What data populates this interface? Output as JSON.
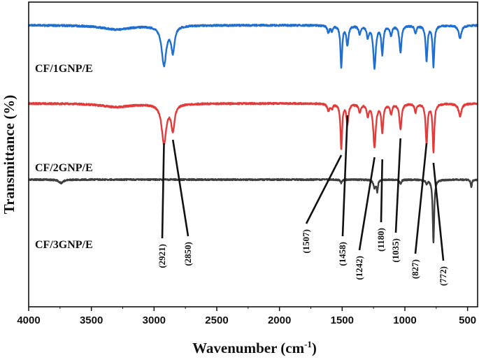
{
  "chart_data": {
    "type": "line",
    "xlabel": "Wavenumber (cm",
    "xlabel_sup": "-1",
    "xlabel_end": ")",
    "ylabel": "Transmittance (%)",
    "xlim": [
      4000,
      420
    ],
    "x_reversed": true,
    "x_ticks": [
      4000,
      3500,
      3000,
      2500,
      2000,
      1500,
      1000,
      500
    ],
    "y_ticks_shown": false,
    "grid": false,
    "series": [
      {
        "name": "CF/1GNP/E",
        "color": "#1f6fd1",
        "baseline": 36,
        "noise": 1.2,
        "peaks": [
          {
            "x": 3300,
            "depth": 6,
            "width": 140
          },
          {
            "x": 2921,
            "depth": 56,
            "width": 22
          },
          {
            "x": 2850,
            "depth": 36,
            "width": 16
          },
          {
            "x": 1610,
            "depth": 10,
            "width": 10
          },
          {
            "x": 1582,
            "depth": 7,
            "width": 8
          },
          {
            "x": 1507,
            "depth": 60,
            "width": 8
          },
          {
            "x": 1458,
            "depth": 28,
            "width": 10
          },
          {
            "x": 1360,
            "depth": 12,
            "width": 10
          },
          {
            "x": 1296,
            "depth": 16,
            "width": 10
          },
          {
            "x": 1242,
            "depth": 60,
            "width": 12
          },
          {
            "x": 1180,
            "depth": 40,
            "width": 9
          },
          {
            "x": 1110,
            "depth": 14,
            "width": 10
          },
          {
            "x": 1035,
            "depth": 38,
            "width": 10
          },
          {
            "x": 915,
            "depth": 12,
            "width": 8
          },
          {
            "x": 827,
            "depth": 50,
            "width": 9
          },
          {
            "x": 772,
            "depth": 58,
            "width": 8
          },
          {
            "x": 560,
            "depth": 18,
            "width": 14
          }
        ]
      },
      {
        "name": "CF/2GNP/E",
        "color": "#e23b3b",
        "baseline": 148,
        "noise": 1.2,
        "peaks": [
          {
            "x": 3300,
            "depth": 5,
            "width": 140
          },
          {
            "x": 2921,
            "depth": 56,
            "width": 22
          },
          {
            "x": 2850,
            "depth": 36,
            "width": 16
          },
          {
            "x": 1610,
            "depth": 10,
            "width": 10
          },
          {
            "x": 1582,
            "depth": 7,
            "width": 8
          },
          {
            "x": 1507,
            "depth": 64,
            "width": 8
          },
          {
            "x": 1458,
            "depth": 28,
            "width": 10
          },
          {
            "x": 1360,
            "depth": 12,
            "width": 10
          },
          {
            "x": 1296,
            "depth": 16,
            "width": 10
          },
          {
            "x": 1242,
            "depth": 62,
            "width": 12
          },
          {
            "x": 1180,
            "depth": 40,
            "width": 9
          },
          {
            "x": 1110,
            "depth": 14,
            "width": 10
          },
          {
            "x": 1035,
            "depth": 36,
            "width": 10
          },
          {
            "x": 915,
            "depth": 12,
            "width": 8
          },
          {
            "x": 827,
            "depth": 56,
            "width": 9
          },
          {
            "x": 772,
            "depth": 68,
            "width": 8
          },
          {
            "x": 560,
            "depth": 18,
            "width": 14
          }
        ]
      },
      {
        "name": "CF/3GNP/E",
        "color": "#3f3f3f",
        "baseline": 257,
        "noise": 1.0,
        "peaks": [
          {
            "x": 3740,
            "depth": 5,
            "width": 20
          },
          {
            "x": 1507,
            "depth": 5,
            "width": 8
          },
          {
            "x": 1242,
            "depth": 12,
            "width": 10
          },
          {
            "x": 1220,
            "depth": 16,
            "width": 6
          },
          {
            "x": 1035,
            "depth": 6,
            "width": 8
          },
          {
            "x": 827,
            "depth": 5,
            "width": 8
          },
          {
            "x": 772,
            "depth": 90,
            "width": 7
          },
          {
            "x": 470,
            "depth": 10,
            "width": 6
          }
        ]
      }
    ],
    "annotations": [
      {
        "label": "(2921)",
        "x": 2921
      },
      {
        "label": "(2850)",
        "x": 2850
      },
      {
        "label": "(1507)",
        "x": 1507
      },
      {
        "label": "(1458)",
        "x": 1458
      },
      {
        "label": "(1242)",
        "x": 1242
      },
      {
        "label": "(1180)",
        "x": 1180
      },
      {
        "label": "(1035)",
        "x": 1035
      },
      {
        "label": "(827)",
        "x": 827
      },
      {
        "label": "(772)",
        "x": 772
      }
    ]
  }
}
